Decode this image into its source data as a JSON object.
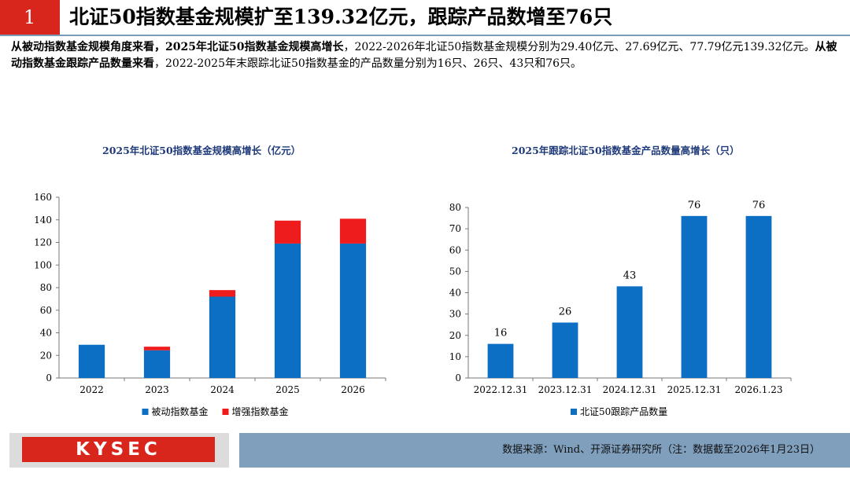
{
  "header": {
    "number": "1",
    "title": "北证50指数基金规模扩至139.32亿元，跟踪产品数增至76只"
  },
  "intro": {
    "bold1": "从被动指数基金规模角度来看，2025年北证50指数基金规模高增长",
    "text1": "，2022-2026年北证50指数基金规模分别为29.40亿元、27.69亿元、77.79亿元139.32亿元。",
    "bold2": "从被动指数基金跟踪产品数量来看",
    "text2": "，2022-2025年末跟踪北证50指数基金的产品数量分别为16只、26只、43只和76只。"
  },
  "colors": {
    "blue": "#0d6fc3",
    "red": "#ee1c1c"
  },
  "chart_data": [
    {
      "type": "bar",
      "stacked": true,
      "title": "2025年北证50指数基金规模高增长（亿元）",
      "categories": [
        "2022",
        "2023",
        "2024",
        "2025",
        "2026"
      ],
      "series": [
        {
          "name": "被动指数基金",
          "values": [
            29.4,
            24.5,
            72.0,
            119.0,
            119.0
          ]
        },
        {
          "name": "增强指数基金",
          "values": [
            0,
            3.2,
            5.8,
            20.3,
            22.0
          ]
        }
      ],
      "ylim": [
        0,
        160
      ],
      "yticks": [
        "0",
        "20",
        "40",
        "60",
        "80",
        "100",
        "120",
        "140",
        "160"
      ],
      "legend": "bottom"
    },
    {
      "type": "bar",
      "title": "2025年跟踪北证50指数基金产品数量高增长（只）",
      "categories": [
        "2022.12.31",
        "2023.12.31",
        "2024.12.31",
        "2025.12.31",
        "2026.1.23"
      ],
      "series": [
        {
          "name": "北证50跟踪产品数量",
          "values": [
            16,
            26,
            43,
            76,
            76
          ]
        }
      ],
      "data_labels": [
        "16",
        "26",
        "43",
        "76",
        "76"
      ],
      "ylim": [
        0,
        80
      ],
      "yticks": [
        "0",
        "10",
        "20",
        "30",
        "40",
        "50",
        "60",
        "70",
        "80"
      ],
      "legend": "bottom"
    }
  ],
  "footer": {
    "logo": "KYSEC",
    "source": "数据来源：Wind、开源证券研究所（注：数据截至2026年1月23日）"
  }
}
